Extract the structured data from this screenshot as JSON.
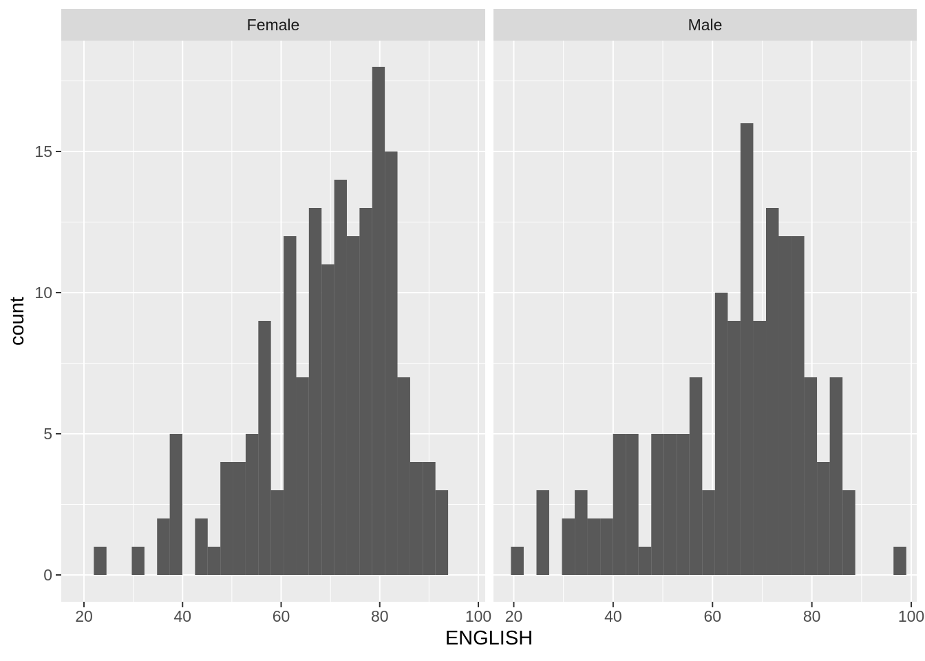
{
  "figure": {
    "background": "#FFFFFF"
  },
  "style": {
    "bar_fill": "#595959",
    "panel_bg": "#EBEBEB",
    "strip_bg": "#D9D9D9",
    "grid_color": "#FFFFFF",
    "tick_color": "#333333",
    "axis_text_color": "#4D4D4D",
    "title_text_color": "#000000",
    "strip_text_color": "#1A1A1A"
  },
  "chart_data": {
    "type": "bar",
    "subtype": "histogram",
    "title": "",
    "xlabel": "ENGLISH",
    "ylabel": "count",
    "legend": "none",
    "grid": "on",
    "xlim": [
      15.4,
      101.4
    ],
    "ylim": [
      -0.95,
      18.95
    ],
    "x_ticks": [
      20,
      40,
      60,
      80,
      100
    ],
    "x_tick_labels": [
      "20",
      "40",
      "60",
      "80",
      "100"
    ],
    "x_minor_ticks": [
      30,
      50,
      70,
      90
    ],
    "y_ticks": [
      0,
      5,
      10,
      15
    ],
    "y_tick_labels": [
      "0",
      "5",
      "10",
      "15"
    ],
    "y_minor_ticks": [
      2.5,
      7.5,
      12.5,
      17.5
    ],
    "bin_width": 2.567,
    "bin_edges": [
      19.43,
      22.0,
      24.57,
      27.13,
      29.7,
      32.27,
      34.83,
      37.4,
      39.97,
      42.53,
      45.1,
      47.67,
      50.23,
      52.8,
      55.37,
      57.93,
      60.5,
      63.07,
      65.63,
      68.2,
      70.77,
      73.33,
      75.9,
      78.47,
      81.03,
      83.6,
      86.17,
      88.73,
      91.3,
      93.87,
      96.43,
      99.0
    ],
    "facets": [
      {
        "label": "Female",
        "total": 170,
        "counts": [
          0,
          1,
          0,
          0,
          1,
          0,
          2,
          5,
          0,
          2,
          1,
          4,
          4,
          5,
          9,
          3,
          12,
          7,
          13,
          11,
          14,
          12,
          13,
          18,
          15,
          7,
          4,
          4,
          3,
          0,
          0
        ]
      },
      {
        "label": "Male",
        "total": 152,
        "counts": [
          1,
          0,
          3,
          0,
          2,
          3,
          2,
          2,
          5,
          5,
          1,
          5,
          5,
          5,
          7,
          3,
          10,
          9,
          16,
          9,
          13,
          12,
          12,
          7,
          4,
          7,
          3,
          0,
          0,
          0,
          1
        ]
      }
    ]
  }
}
